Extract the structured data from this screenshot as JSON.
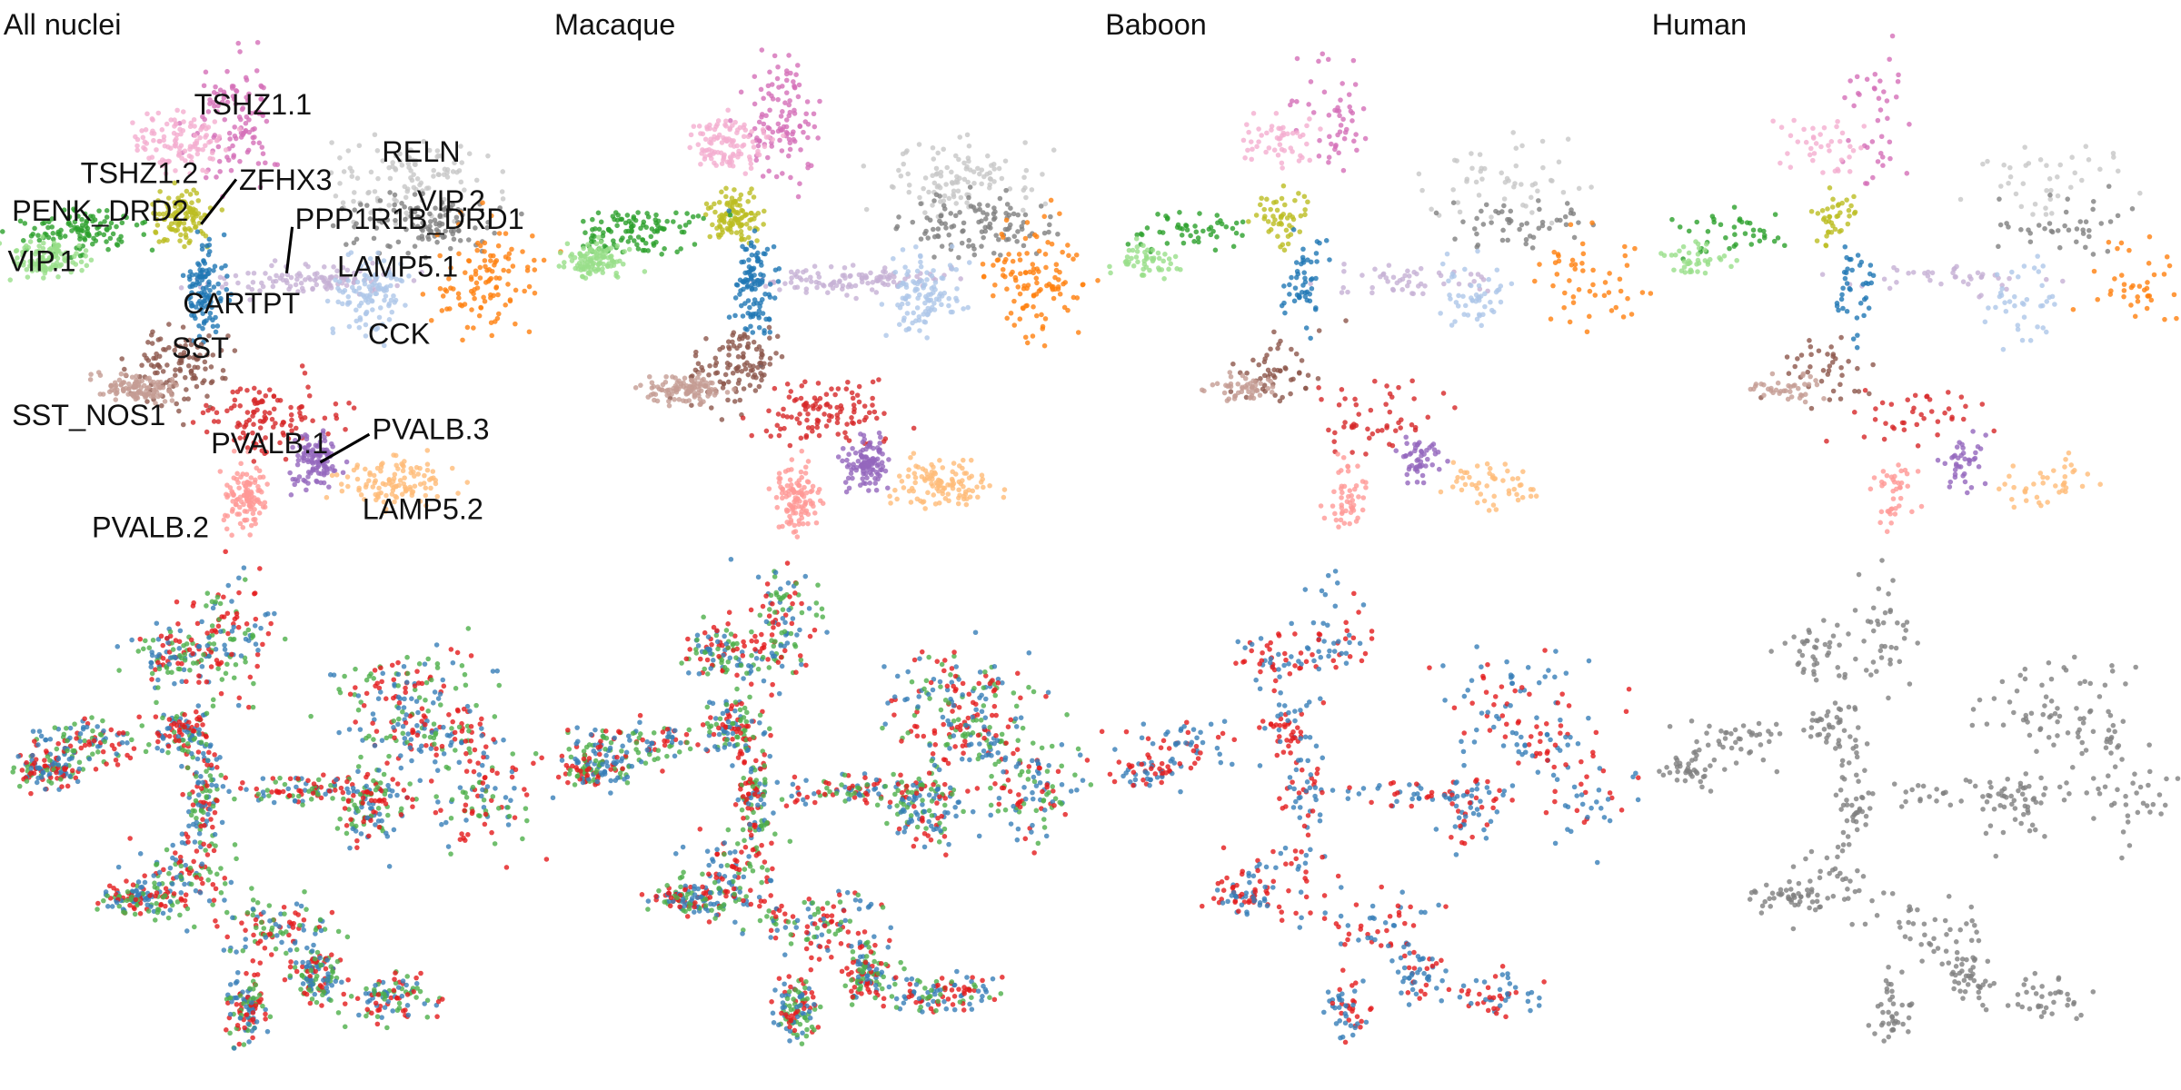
{
  "panels": [
    {
      "title": "All nuclei"
    },
    {
      "title": "Macaque"
    },
    {
      "title": "Baboon"
    },
    {
      "title": "Human"
    }
  ],
  "clusters": [
    {
      "label": "TSHZ1.1",
      "color": "#d46fb8"
    },
    {
      "label": "TSHZ1.2",
      "color": "#f4aed0"
    },
    {
      "label": "ZFHX3",
      "color": "#bcbd22"
    },
    {
      "label": "PENK_DRD2",
      "color": "#2ca02c"
    },
    {
      "label": "PPP1R1B_DRD1",
      "color": "#98df8a"
    },
    {
      "label": "RELN",
      "color": "#c5b0d5"
    },
    {
      "label": "VIP.2",
      "color": "#c7c7c7"
    },
    {
      "label": "VIP.1",
      "color": "#7f7f7f"
    },
    {
      "label": "LAMP5.1",
      "color": "#ff7f0e"
    },
    {
      "label": "CARTPT",
      "color": "#1f77b4"
    },
    {
      "label": "CCK",
      "color": "#aec7e8"
    },
    {
      "label": "SST",
      "color": "#8c564b"
    },
    {
      "label": "SST_NOS1",
      "color": "#c49c94"
    },
    {
      "label": "PVALB.1",
      "color": "#d62728"
    },
    {
      "label": "PVALB.3",
      "color": "#9467bd"
    },
    {
      "label": "PVALB.2",
      "color": "#ff9896"
    },
    {
      "label": "LAMP5.2",
      "color": "#ffbb78"
    }
  ],
  "row2_colors": [
    [
      "#e41a1c",
      "#377eb8",
      "#4daf4a"
    ],
    [
      "#e41a1c",
      "#377eb8",
      "#4daf4a"
    ],
    [
      "#e41a1c",
      "#377eb8"
    ],
    [
      "#808080"
    ]
  ]
}
